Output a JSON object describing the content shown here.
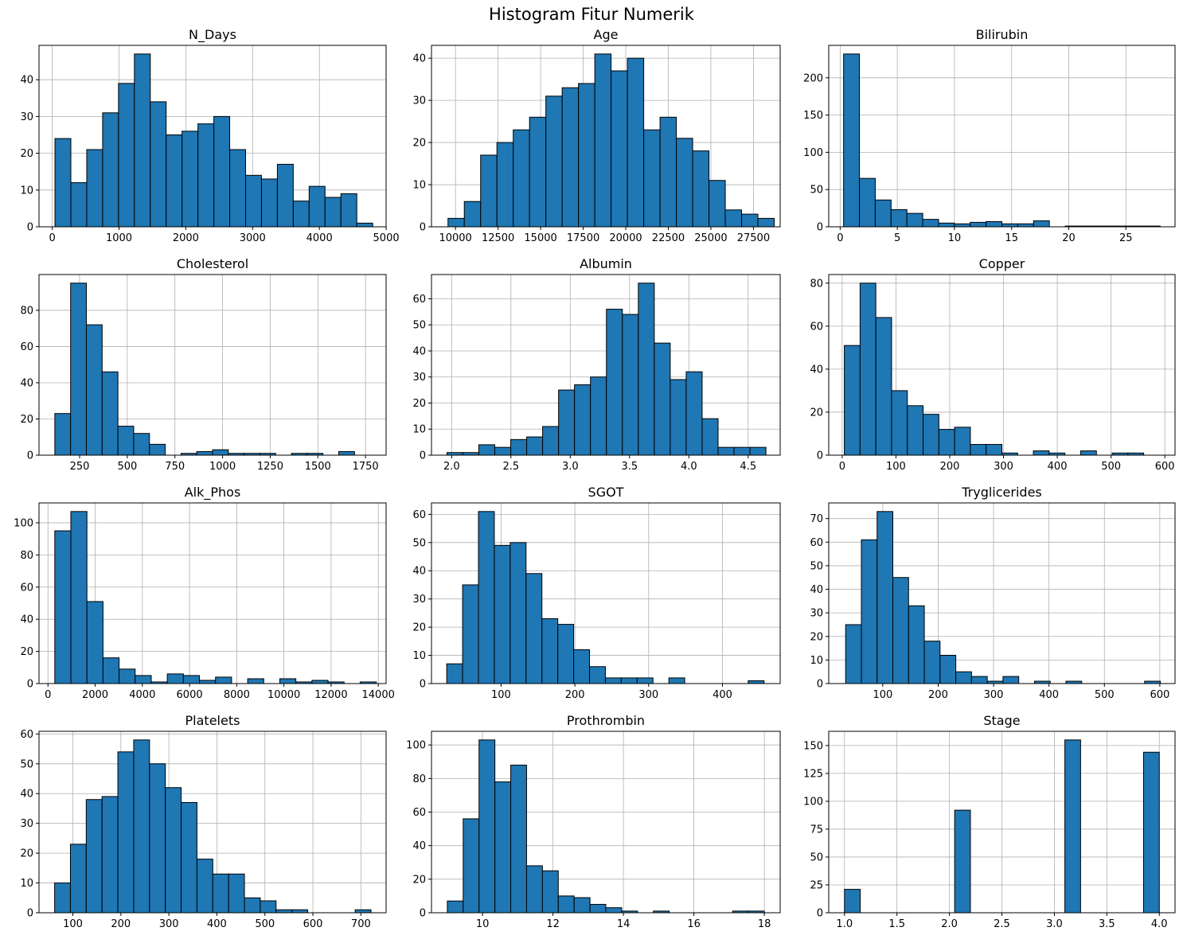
{
  "figure": {
    "title": "Histogram Fitur Numerik"
  },
  "colors": {
    "bar_fill": "#1f77b4",
    "bar_edge": "#000000",
    "grid": "#b0b0b0",
    "axis": "#000000"
  },
  "chart_data": [
    {
      "type": "bar",
      "title": "N_Days",
      "grid": true,
      "xlim": [
        -198,
        4999
      ],
      "ylim": [
        0,
        49.35
      ],
      "xticks": [
        0,
        1000,
        2000,
        3000,
        4000,
        5000
      ],
      "xtick_labels": [
        "0",
        "1000",
        "2000",
        "3000",
        "4000",
        "5000"
      ],
      "yticks": [
        0,
        10,
        20,
        30,
        40
      ],
      "bins": {
        "start": 41,
        "width": 237.85,
        "counts": [
          24,
          12,
          21,
          31,
          39,
          47,
          34,
          25,
          26,
          28,
          30,
          21,
          14,
          13,
          17,
          7,
          11,
          8,
          9,
          1
        ]
      }
    },
    {
      "type": "bar",
      "title": "Age",
      "grid": true,
      "xlim": [
        8590,
        29070
      ],
      "ylim": [
        0,
        43.05
      ],
      "xticks": [
        10000,
        12500,
        15000,
        17500,
        20000,
        22500,
        25000,
        27500
      ],
      "xtick_labels": [
        "10000",
        "12500",
        "15000",
        "17500",
        "20000",
        "22500",
        "25000",
        "27500"
      ],
      "yticks": [
        0,
        10,
        20,
        30,
        40
      ],
      "bins": {
        "start": 9560,
        "width": 958,
        "counts": [
          2,
          6,
          17,
          20,
          23,
          26,
          31,
          33,
          34,
          41,
          37,
          40,
          23,
          26,
          21,
          18,
          11,
          4,
          3,
          2
        ]
      }
    },
    {
      "type": "bar",
      "title": "Bilirubin",
      "grid": true,
      "xlim": [
        -1.0,
        29.3
      ],
      "ylim": [
        0,
        243.6
      ],
      "xticks": [
        0,
        5,
        10,
        15,
        20,
        25
      ],
      "xtick_labels": [
        "0",
        "5",
        "10",
        "15",
        "20",
        "25"
      ],
      "yticks": [
        0,
        50,
        100,
        150,
        200
      ],
      "bins": {
        "start": 0.3,
        "width": 1.385,
        "counts": [
          232,
          65,
          36,
          23,
          18,
          10,
          5,
          4,
          6,
          7,
          4,
          4,
          8,
          0,
          1,
          1,
          1,
          1,
          1,
          1
        ]
      }
    },
    {
      "type": "bar",
      "title": "Cholesterol",
      "grid": true,
      "xlim": [
        37,
        1858
      ],
      "ylim": [
        0,
        99.75
      ],
      "xticks": [
        250,
        500,
        750,
        1000,
        1250,
        1500,
        1750
      ],
      "xtick_labels": [
        "250",
        "500",
        "750",
        "1000",
        "1250",
        "1500",
        "1750"
      ],
      "yticks": [
        0,
        20,
        40,
        60,
        80
      ],
      "bins": {
        "start": 120,
        "width": 82.75,
        "counts": [
          23,
          95,
          72,
          46,
          16,
          12,
          6,
          0,
          1,
          2,
          3,
          1,
          1,
          1,
          0,
          1,
          1,
          0,
          2,
          0
        ]
      }
    },
    {
      "type": "bar",
      "title": "Albumin",
      "grid": true,
      "xlim": [
        1.83,
        4.77
      ],
      "ylim": [
        0,
        69.3
      ],
      "xticks": [
        2.0,
        2.5,
        3.0,
        3.5,
        4.0,
        4.5
      ],
      "xtick_labels": [
        "2.0",
        "2.5",
        "3.0",
        "3.5",
        "4.0",
        "4.5"
      ],
      "yticks": [
        0,
        10,
        20,
        30,
        40,
        50,
        60
      ],
      "bins": {
        "start": 1.96,
        "width": 0.1345,
        "counts": [
          1,
          1,
          4,
          3,
          6,
          7,
          11,
          25,
          27,
          30,
          56,
          54,
          66,
          43,
          29,
          32,
          14,
          3,
          3,
          3
        ]
      }
    },
    {
      "type": "bar",
      "title": "Copper",
      "grid": true,
      "xlim": [
        -25,
        619
      ],
      "ylim": [
        0,
        84
      ],
      "xticks": [
        0,
        100,
        200,
        300,
        400,
        500,
        600
      ],
      "xtick_labels": [
        "0",
        "100",
        "200",
        "300",
        "400",
        "500",
        "600"
      ],
      "yticks": [
        0,
        20,
        40,
        60,
        80
      ],
      "bins": {
        "start": 4,
        "width": 29.3,
        "counts": [
          51,
          80,
          64,
          30,
          23,
          19,
          12,
          13,
          5,
          5,
          1,
          0,
          2,
          1,
          0,
          2,
          0,
          1,
          1,
          0
        ]
      }
    },
    {
      "type": "bar",
      "title": "Alk_Phos",
      "grid": true,
      "xlim": [
        -380,
        14331
      ],
      "ylim": [
        0,
        112.35
      ],
      "xticks": [
        0,
        2000,
        4000,
        6000,
        8000,
        10000,
        12000,
        14000
      ],
      "xtick_labels": [
        "0",
        "2000",
        "4000",
        "6000",
        "8000",
        "10000",
        "12000",
        "14000"
      ],
      "yticks": [
        0,
        20,
        40,
        60,
        80,
        100
      ],
      "bins": {
        "start": 289,
        "width": 681.2,
        "counts": [
          95,
          107,
          51,
          16,
          9,
          5,
          1,
          6,
          5,
          2,
          4,
          0,
          3,
          0,
          3,
          1,
          2,
          1,
          0,
          1
        ]
      }
    },
    {
      "type": "bar",
      "title": "SGOT",
      "grid": true,
      "xlim": [
        5.7,
        478.2
      ],
      "ylim": [
        0,
        64.05
      ],
      "xticks": [
        100,
        200,
        300,
        400
      ],
      "xtick_labels": [
        "100",
        "200",
        "300",
        "400"
      ],
      "yticks": [
        0,
        10,
        20,
        30,
        40,
        50,
        60
      ],
      "bins": {
        "start": 26.35,
        "width": 21.5,
        "counts": [
          7,
          35,
          61,
          49,
          50,
          39,
          23,
          21,
          12,
          6,
          2,
          2,
          2,
          0,
          2,
          0,
          0,
          0,
          0,
          1
        ]
      }
    },
    {
      "type": "bar",
      "title": "Tryglicerides",
      "grid": true,
      "xlim": [
        2.5,
        627.5
      ],
      "ylim": [
        0,
        76.65
      ],
      "xticks": [
        100,
        200,
        300,
        400,
        500,
        600
      ],
      "xtick_labels": [
        "100",
        "200",
        "300",
        "400",
        "500",
        "600"
      ],
      "yticks": [
        0,
        10,
        20,
        30,
        40,
        50,
        60,
        70
      ],
      "bins": {
        "start": 33,
        "width": 28.4,
        "counts": [
          25,
          61,
          73,
          45,
          33,
          18,
          12,
          5,
          3,
          1,
          3,
          0,
          1,
          0,
          1,
          0,
          0,
          0,
          0,
          1
        ]
      }
    },
    {
      "type": "bar",
      "title": "Platelets",
      "grid": true,
      "xlim": [
        29.5,
        752.5
      ],
      "ylim": [
        0,
        60.9
      ],
      "xticks": [
        100,
        200,
        300,
        400,
        500,
        600,
        700
      ],
      "xtick_labels": [
        "100",
        "200",
        "300",
        "400",
        "500",
        "600",
        "700"
      ],
      "yticks": [
        0,
        10,
        20,
        30,
        40,
        50,
        60
      ],
      "bins": {
        "start": 62,
        "width": 32.95,
        "counts": [
          10,
          23,
          38,
          39,
          54,
          58,
          50,
          42,
          37,
          18,
          13,
          13,
          5,
          4,
          1,
          1,
          0,
          0,
          0,
          1
        ]
      }
    },
    {
      "type": "bar",
      "title": "Prothrombin",
      "grid": true,
      "xlim": [
        8.55,
        18.45
      ],
      "ylim": [
        0,
        108.15
      ],
      "xticks": [
        10,
        12,
        14,
        16,
        18
      ],
      "xtick_labels": [
        "10",
        "12",
        "14",
        "16",
        "18"
      ],
      "yticks": [
        0,
        20,
        40,
        60,
        80,
        100
      ],
      "bins": {
        "start": 9.0,
        "width": 0.45,
        "counts": [
          7,
          56,
          103,
          78,
          88,
          28,
          25,
          10,
          9,
          5,
          3,
          1,
          0,
          1,
          0,
          0,
          0,
          0,
          1,
          1
        ]
      }
    },
    {
      "type": "bar",
      "title": "Stage",
      "grid": true,
      "xlim": [
        0.85,
        4.15
      ],
      "ylim": [
        0,
        162.75
      ],
      "xticks": [
        1.0,
        1.5,
        2.0,
        2.5,
        3.0,
        3.5,
        4.0
      ],
      "xtick_labels": [
        "1.0",
        "1.5",
        "2.0",
        "2.5",
        "3.0",
        "3.5",
        "4.0"
      ],
      "yticks": [
        0,
        25,
        50,
        75,
        100,
        125,
        150
      ],
      "bins": {
        "start": 1.0,
        "width": 0.15,
        "counts": [
          21,
          0,
          0,
          0,
          0,
          0,
          0,
          92,
          0,
          0,
          0,
          0,
          0,
          0,
          155,
          0,
          0,
          0,
          0,
          144
        ]
      }
    }
  ]
}
